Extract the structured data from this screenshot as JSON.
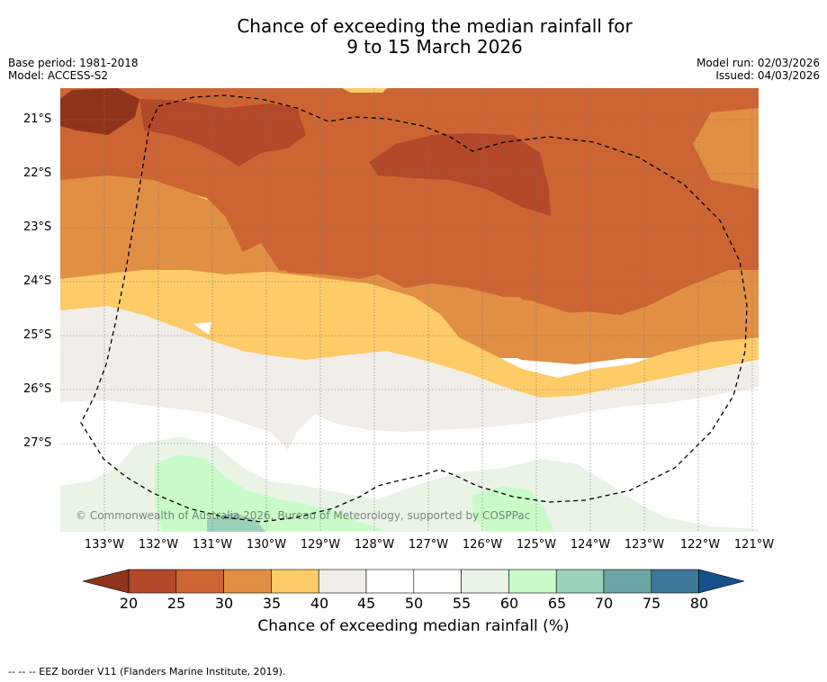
{
  "title_line1": "Chance of exceeding the median rainfall for",
  "title_line2": "9 to 15 March 2026",
  "base_period": "Base period: 1981-2018",
  "model": "Model: ACCESS-S2",
  "model_run": "Model run: 02/03/2026",
  "issued": "Issued: 04/03/2026",
  "lat_labels": [
    "21°S",
    "22°S",
    "23°S",
    "24°S",
    "25°S",
    "26°S",
    "27°S"
  ],
  "lon_labels": [
    "133°W",
    "132°W",
    "131°W",
    "130°W",
    "129°W",
    "128°W",
    "127°W",
    "126°W",
    "125°W",
    "124°W",
    "123°W",
    "122°W",
    "121°W"
  ],
  "copyright": "© Commonwealth of Australia 2026, Bureau of Meteorology, supported by COSPPac",
  "colorbar": {
    "title": "Chance of exceeding median rainfall (%)",
    "labels": [
      "20",
      "25",
      "30",
      "35",
      "40",
      "45",
      "50",
      "55",
      "60",
      "65",
      "70",
      "75",
      "80"
    ],
    "colors": [
      "#8f341c",
      "#b3482a",
      "#cc6533",
      "#e08f45",
      "#fdcb68",
      "#f1ede8",
      "#ffffff",
      "#ffffff",
      "#e9f4e7",
      "#c9fbc9",
      "#9bd0b9",
      "#6ca5a5",
      "#3d7697",
      "#16508a"
    ]
  },
  "footer": "-- -- -- EEZ border V11 (Flanders Marine Institute, 2019)."
}
